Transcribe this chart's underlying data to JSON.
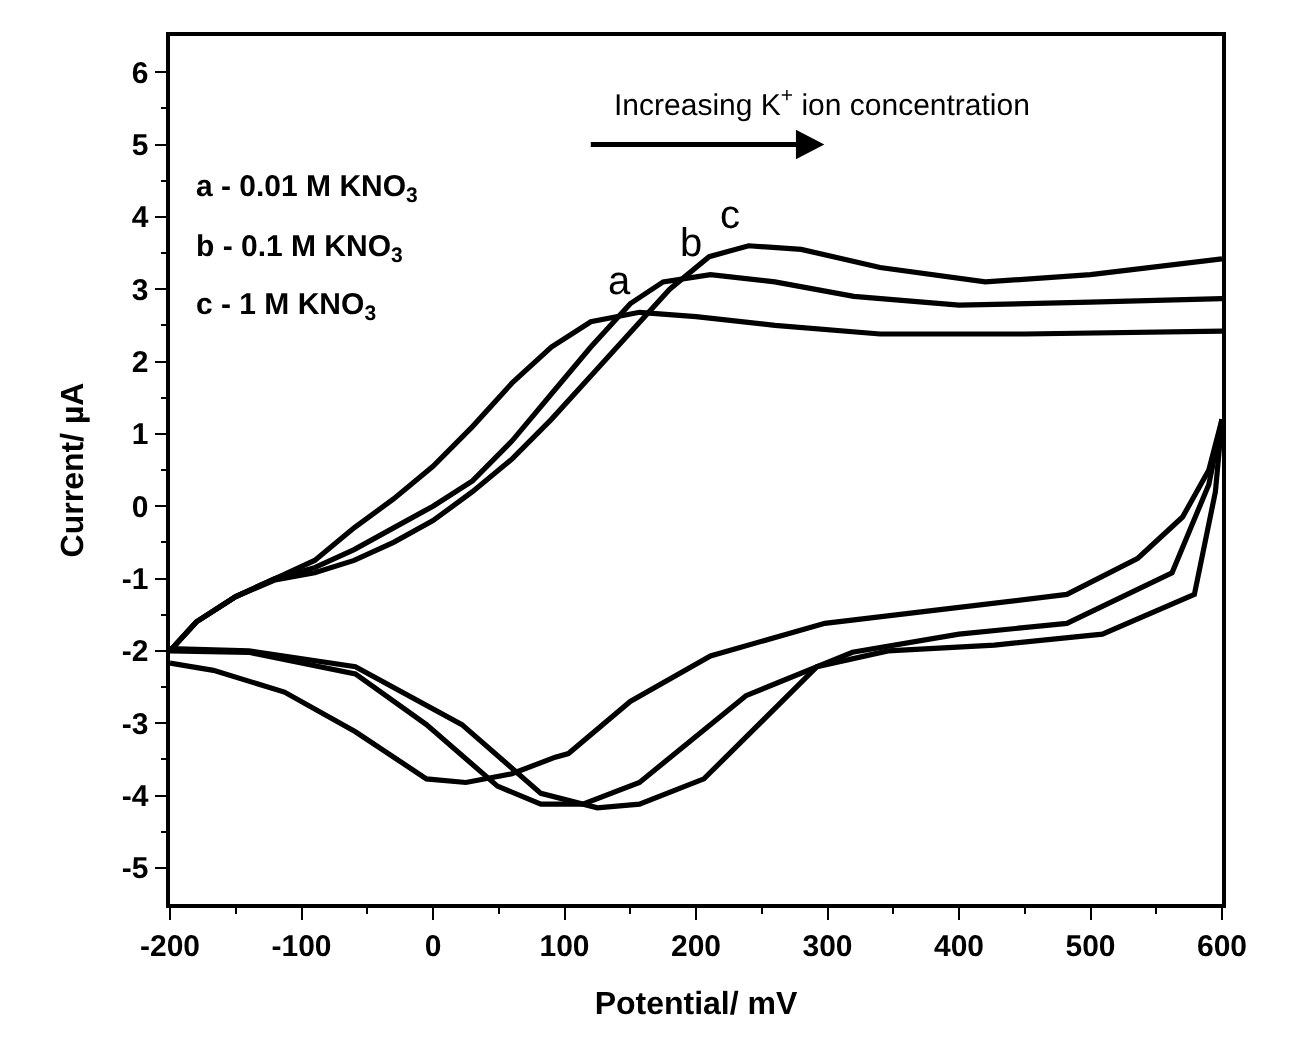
{
  "chart_data": {
    "type": "line",
    "xlabel": "Potential/ mV",
    "ylabel": "Current/ µA",
    "xlim": [
      -200,
      600
    ],
    "ylim": [
      -5.5,
      6.5
    ],
    "xticks": [
      -200,
      -100,
      0,
      100,
      200,
      300,
      400,
      500,
      600
    ],
    "yticks": [
      -5,
      -4,
      -3,
      -2,
      -1,
      0,
      1,
      2,
      3,
      4,
      5,
      6
    ],
    "legend": false,
    "marker": "none",
    "line_style": "solid",
    "annotations": [
      "Increasing K$^{+}$ ion concentration",
      "a - 0.01 M KNO$_{3}$",
      "b - 0.1 M KNO$_{3}$",
      "c - 1 M KNO$_{3}$"
    ],
    "series": [
      {
        "name": "a",
        "color": "#000000",
        "x": [
          -200,
          -180,
          -150,
          -120,
          -90,
          -60,
          -30,
          0,
          30,
          60,
          90,
          120,
          157,
          200,
          260,
          340,
          450,
          600
        ],
        "values": [
          -2.0,
          -1.6,
          -1.25,
          -1.0,
          -0.75,
          -0.3,
          0.1,
          0.55,
          1.1,
          1.7,
          2.2,
          2.55,
          2.68,
          2.62,
          2.5,
          2.38,
          2.38,
          2.42
        ]
      },
      {
        "color": "#000000",
        "x": [
          600,
          590,
          570,
          536,
          482,
          400,
          298,
          211,
          150,
          103,
          93,
          60,
          25,
          -5,
          -59,
          -113,
          -167,
          -200
        ],
        "values": [
          1.2,
          0.5,
          -0.15,
          -0.72,
          -1.22,
          -1.4,
          -1.62,
          -2.07,
          -2.7,
          -3.42,
          -3.47,
          -3.7,
          -3.82,
          -3.77,
          -3.12,
          -2.57,
          -2.27,
          -2.17
        ]
      },
      {
        "name": "b",
        "color": "#000000",
        "x": [
          -200,
          -180,
          -150,
          -120,
          -90,
          -60,
          -30,
          0,
          30,
          60,
          90,
          120,
          150,
          175,
          211,
          260,
          320,
          400,
          500,
          600
        ],
        "values": [
          -2.0,
          -1.6,
          -1.25,
          -1.0,
          -0.85,
          -0.6,
          -0.3,
          0.0,
          0.35,
          0.9,
          1.55,
          2.2,
          2.8,
          3.1,
          3.2,
          3.1,
          2.9,
          2.78,
          2.82,
          2.87
        ]
      },
      {
        "color": "#000000",
        "x": [
          600,
          590,
          562,
          482,
          400,
          319,
          238,
          157,
          114,
          82,
          49,
          -5,
          -59,
          -140,
          -200
        ],
        "values": [
          1.2,
          0.3,
          -0.92,
          -1.62,
          -1.77,
          -2.02,
          -2.62,
          -3.82,
          -4.12,
          -4.12,
          -3.87,
          -3.02,
          -2.32,
          -2.02,
          -2.0
        ]
      },
      {
        "name": "c",
        "color": "#000000",
        "x": [
          -200,
          -180,
          -150,
          -120,
          -90,
          -60,
          -30,
          0,
          30,
          60,
          90,
          120,
          150,
          180,
          210,
          240,
          280,
          340,
          420,
          500,
          600
        ],
        "values": [
          -2.0,
          -1.6,
          -1.25,
          -1.02,
          -0.92,
          -0.75,
          -0.5,
          -0.2,
          0.2,
          0.65,
          1.2,
          1.8,
          2.4,
          3.0,
          3.45,
          3.6,
          3.55,
          3.3,
          3.1,
          3.2,
          3.42
        ]
      },
      {
        "color": "#000000",
        "x": [
          600,
          595,
          579,
          509,
          427,
          346,
          292,
          206,
          157,
          125,
          82,
          22,
          -59,
          -140,
          -200
        ],
        "values": [
          1.2,
          0.2,
          -1.22,
          -1.77,
          -1.92,
          -2.0,
          -2.22,
          -3.77,
          -4.12,
          -4.17,
          -3.97,
          -3.02,
          -2.22,
          -2.0,
          -1.97
        ]
      }
    ]
  }
}
